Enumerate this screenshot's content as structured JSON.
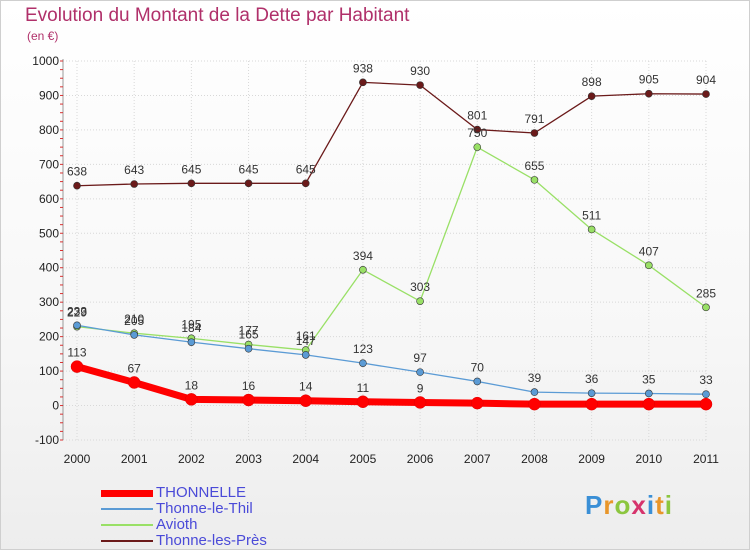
{
  "title": "Evolution du Montant de la Dette par Habitant",
  "unit_label": "(en €)",
  "logo": {
    "letters": [
      "P",
      "r",
      "o",
      "x",
      "i",
      "t",
      "i"
    ],
    "colors": [
      "#3a8fd6",
      "#e8962a",
      "#8cc63f",
      "#d6336c",
      "#3a8fd6",
      "#e8962a",
      "#8cc63f"
    ]
  },
  "chart_data": {
    "type": "line",
    "x": [
      "2000",
      "2001",
      "2002",
      "2003",
      "2004",
      "2005",
      "2006",
      "2007",
      "2008",
      "2009",
      "2010",
      "2011"
    ],
    "ylim": [
      -100,
      1000
    ],
    "yticks": [
      -100,
      0,
      100,
      200,
      300,
      400,
      500,
      600,
      700,
      800,
      900,
      1000
    ],
    "grid": true,
    "legend_position": "bottom-left",
    "series": [
      {
        "name": "THONNELLE",
        "color": "#ff0000",
        "values": [
          113,
          67,
          18,
          16,
          14,
          11,
          9,
          7,
          4,
          4,
          4,
          4
        ],
        "labels": [
          "113",
          "67",
          "18",
          "16",
          "14",
          "11",
          "9",
          "",
          "",
          "",
          "",
          ""
        ]
      },
      {
        "name": "Thonne-le-Thil",
        "color": "#5b9bd5",
        "values": [
          233,
          205,
          184,
          165,
          147,
          123,
          97,
          70,
          39,
          36,
          35,
          33
        ],
        "labels": [
          "233",
          "205",
          "184",
          "165",
          "147",
          "123",
          "97",
          "70",
          "39",
          "36",
          "35",
          "33"
        ]
      },
      {
        "name": "Avioth",
        "color": "#99e066",
        "values": [
          229,
          210,
          195,
          177,
          161,
          394,
          303,
          750,
          655,
          511,
          407,
          285
        ],
        "labels": [
          "229",
          "210",
          "195",
          "177",
          "161",
          "394",
          "303",
          "750",
          "655",
          "511",
          "407",
          "285"
        ]
      },
      {
        "name": "Thonne-les-Près",
        "color": "#6b1a1a",
        "values": [
          638,
          643,
          645,
          645,
          645,
          938,
          930,
          801,
          791,
          898,
          905,
          904
        ],
        "labels": [
          "638",
          "643",
          "645",
          "645",
          "645",
          "938",
          "930",
          "801",
          "791",
          "898",
          "905",
          "904"
        ]
      }
    ]
  }
}
